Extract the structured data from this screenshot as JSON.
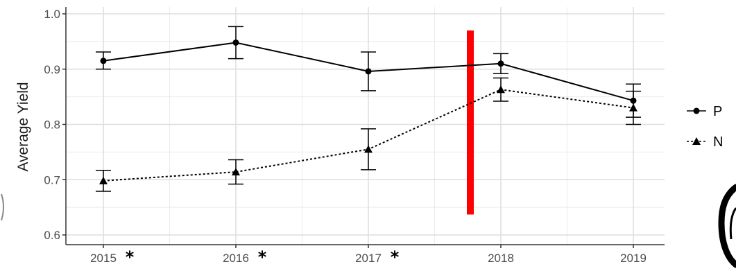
{
  "chart_data": {
    "type": "line",
    "ylabel": "Average Yield",
    "xlabel": "",
    "categories": [
      "2015",
      "2016",
      "2017",
      "2018",
      "2019"
    ],
    "starred_categories": [
      "2015",
      "2016",
      "2017"
    ],
    "star_symbol": "*",
    "ylim": [
      0.58,
      1.0
    ],
    "yticks": [
      "1.0",
      "0.9",
      "0.8",
      "0.7",
      "0.6"
    ],
    "grid": true,
    "legend_position": "right",
    "series": [
      {
        "name": "P",
        "marker": "circle",
        "line_style": "solid",
        "values": [
          0.915,
          0.948,
          0.896,
          0.91,
          0.843
        ],
        "error_low": [
          0.9,
          0.919,
          0.861,
          0.892,
          0.813
        ],
        "error_high": [
          0.931,
          0.977,
          0.931,
          0.928,
          0.873
        ]
      },
      {
        "name": "N",
        "marker": "triangle",
        "line_style": "dotted",
        "values": [
          0.698,
          0.714,
          0.755,
          0.863,
          0.83
        ],
        "error_low": [
          0.679,
          0.692,
          0.718,
          0.842,
          0.8
        ],
        "error_high": [
          0.717,
          0.736,
          0.792,
          0.884,
          0.86
        ]
      }
    ],
    "annotation": {
      "type": "vertical-bar",
      "color": "#ff0000",
      "x_between": [
        "2017",
        "2018"
      ],
      "y_range": [
        0.637,
        0.97
      ]
    },
    "colors": {
      "series": "#000000",
      "grid": "#ebebeb",
      "axis": "#333333",
      "annotation": "#ff0000"
    }
  }
}
